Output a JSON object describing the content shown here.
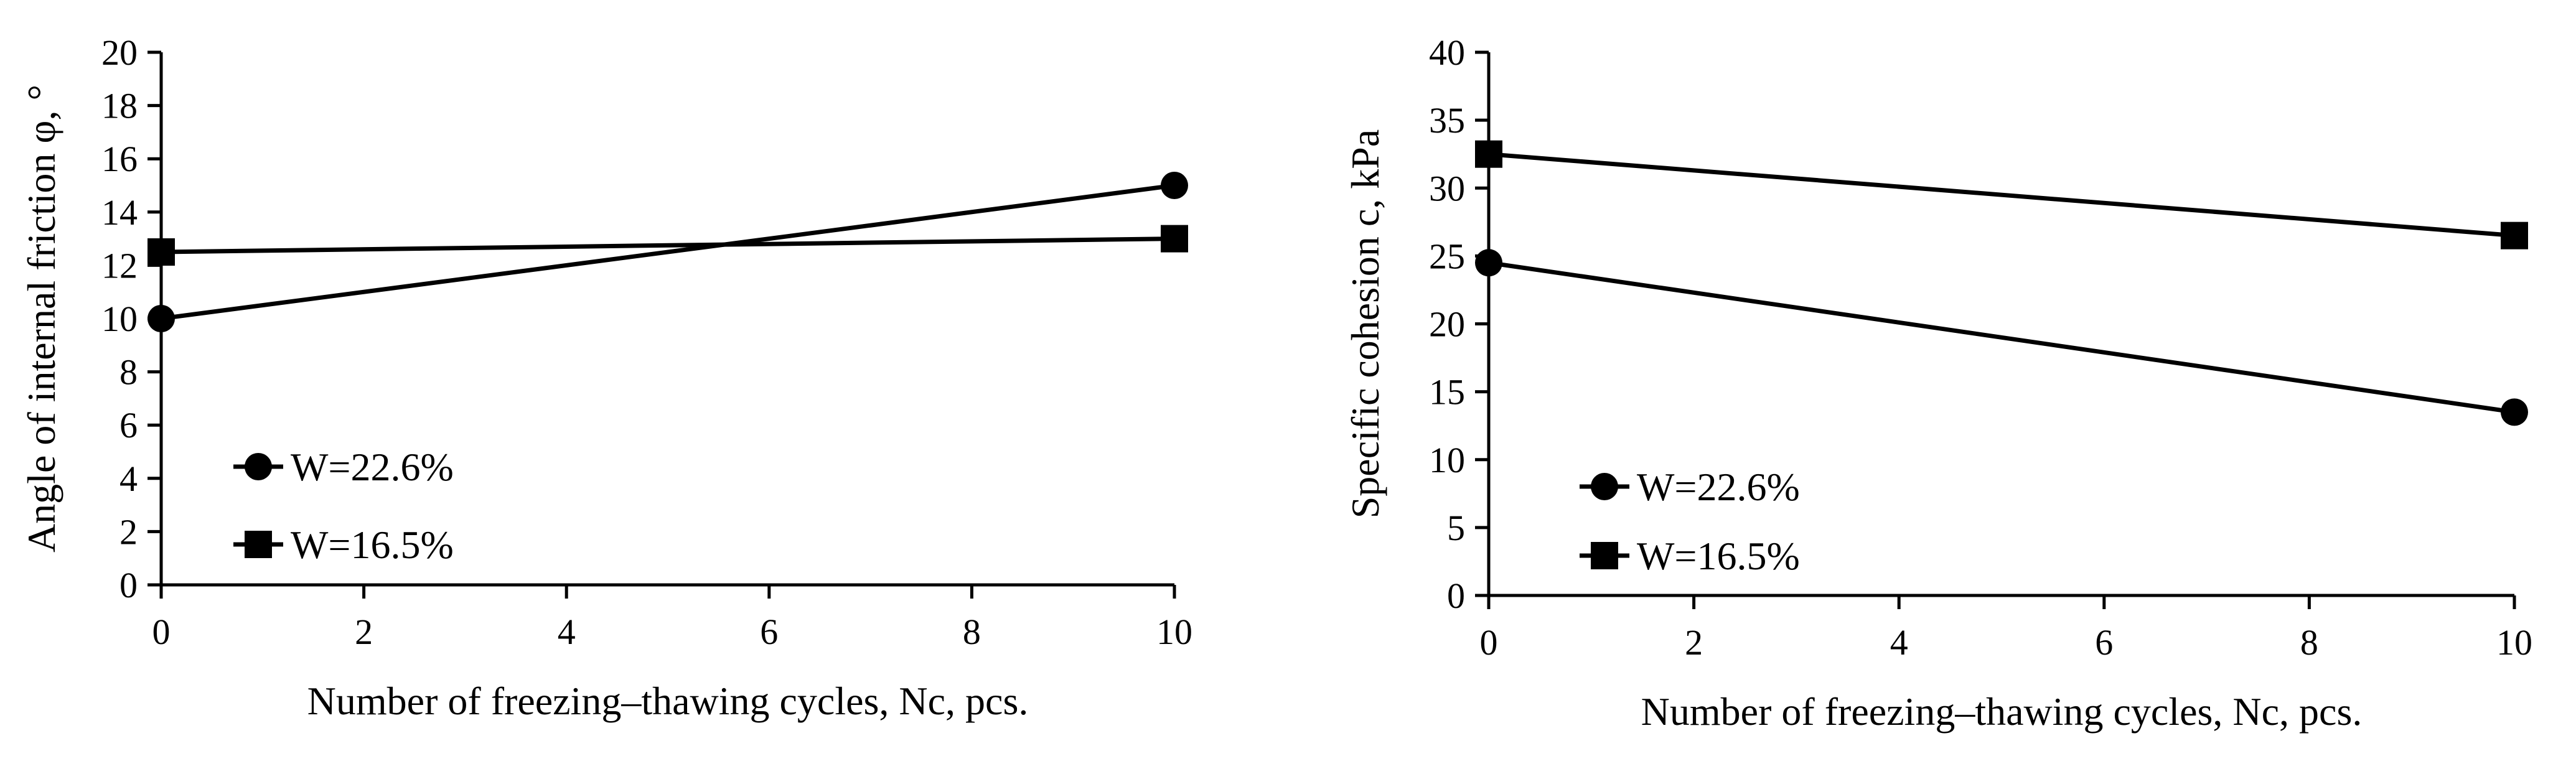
{
  "chart_data": [
    {
      "type": "line",
      "title": "",
      "xlabel": "Number of freezing–thawing cycles, Nc, pcs.",
      "ylabel": "Angle of internal friction φ, °",
      "x": [
        0,
        10
      ],
      "xlim": [
        0,
        10
      ],
      "xticks": [
        0,
        2,
        4,
        6,
        8,
        10
      ],
      "ylim": [
        0,
        20
      ],
      "yticks": [
        0,
        2,
        4,
        6,
        8,
        10,
        12,
        14,
        16,
        18,
        20
      ],
      "grid": false,
      "legend_position": "bottom-left",
      "series": [
        {
          "name": "W=22.6%",
          "marker": "circle",
          "values": [
            10,
            15
          ]
        },
        {
          "name": "W=16.5%",
          "marker": "square",
          "values": [
            12.5,
            13
          ]
        }
      ],
      "color": "#000000"
    },
    {
      "type": "line",
      "title": "",
      "xlabel": "Number of freezing–thawing cycles, Nc, pcs.",
      "ylabel": "Specific cohesion c, kPa",
      "x": [
        0,
        10
      ],
      "xlim": [
        0,
        10
      ],
      "xticks": [
        0,
        2,
        4,
        6,
        8,
        10
      ],
      "ylim": [
        0,
        40
      ],
      "yticks": [
        0,
        5,
        10,
        15,
        20,
        25,
        30,
        35,
        40
      ],
      "grid": false,
      "legend_position": "bottom-left",
      "series": [
        {
          "name": "W=22.6%",
          "marker": "circle",
          "values": [
            24.5,
            13.5
          ]
        },
        {
          "name": "W=16.5%",
          "marker": "square",
          "values": [
            32.5,
            26.5
          ]
        }
      ],
      "color": "#000000"
    }
  ]
}
